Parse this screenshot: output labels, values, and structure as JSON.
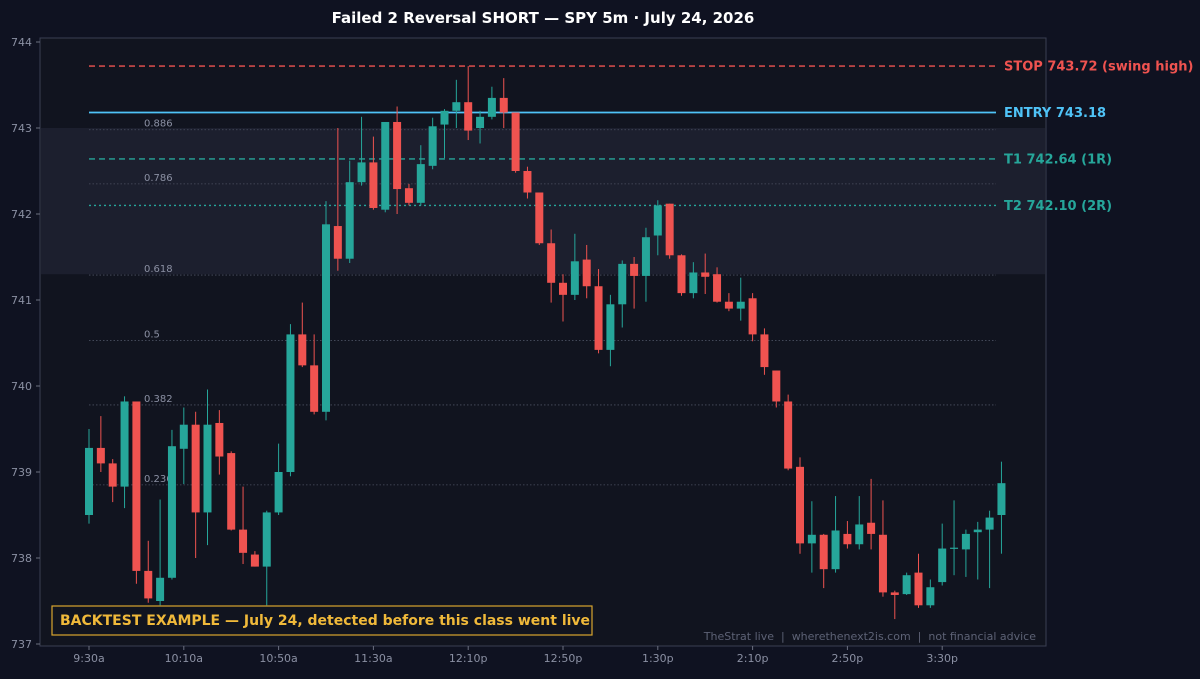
{
  "chart_data": {
    "type": "candlestick",
    "title": "Failed 2 Reversal SHORT — SPY 5m · July 24, 2026",
    "ylim": [
      737,
      744.1
    ],
    "y_ticks": [
      737,
      738,
      739,
      740,
      741,
      742,
      743,
      744
    ],
    "x_tick_labels": [
      {
        "index": 0,
        "label": "9:30a"
      },
      {
        "index": 8,
        "label": "10:10a"
      },
      {
        "index": 16,
        "label": "10:50a"
      },
      {
        "index": 24,
        "label": "11:30a"
      },
      {
        "index": 32,
        "label": "12:10p"
      },
      {
        "index": 40,
        "label": "12:50p"
      },
      {
        "index": 48,
        "label": "1:30p"
      },
      {
        "index": 56,
        "label": "2:10p"
      },
      {
        "index": 64,
        "label": "2:50p"
      },
      {
        "index": 72,
        "label": "3:30p"
      }
    ],
    "grid": false,
    "candles": [
      {
        "o": 738.5,
        "h": 739.5,
        "l": 738.4,
        "c": 739.28
      },
      {
        "o": 739.28,
        "h": 739.65,
        "l": 739.0,
        "c": 739.1
      },
      {
        "o": 739.1,
        "h": 739.15,
        "l": 738.65,
        "c": 738.83
      },
      {
        "o": 738.83,
        "h": 739.88,
        "l": 738.58,
        "c": 739.82
      },
      {
        "o": 739.82,
        "h": 739.82,
        "l": 737.7,
        "c": 737.85
      },
      {
        "o": 737.85,
        "h": 738.2,
        "l": 737.48,
        "c": 737.53
      },
      {
        "o": 737.5,
        "h": 738.68,
        "l": 737.45,
        "c": 737.77
      },
      {
        "o": 737.77,
        "h": 739.49,
        "l": 737.75,
        "c": 739.3
      },
      {
        "o": 739.27,
        "h": 739.75,
        "l": 738.86,
        "c": 739.55
      },
      {
        "o": 739.55,
        "h": 739.7,
        "l": 738.0,
        "c": 738.53
      },
      {
        "o": 738.53,
        "h": 739.96,
        "l": 738.15,
        "c": 739.55
      },
      {
        "o": 739.57,
        "h": 739.72,
        "l": 738.97,
        "c": 739.18
      },
      {
        "o": 739.22,
        "h": 739.24,
        "l": 738.32,
        "c": 738.33
      },
      {
        "o": 738.33,
        "h": 738.83,
        "l": 737.93,
        "c": 738.06
      },
      {
        "o": 738.04,
        "h": 738.08,
        "l": 737.9,
        "c": 737.9
      },
      {
        "o": 737.9,
        "h": 738.55,
        "l": 737.45,
        "c": 738.53
      },
      {
        "o": 738.53,
        "h": 739.33,
        "l": 738.5,
        "c": 739.0
      },
      {
        "o": 739.0,
        "h": 740.72,
        "l": 738.95,
        "c": 740.6
      },
      {
        "o": 740.6,
        "h": 740.97,
        "l": 740.22,
        "c": 740.24
      },
      {
        "o": 740.24,
        "h": 740.6,
        "l": 739.67,
        "c": 739.7
      },
      {
        "o": 739.7,
        "h": 742.15,
        "l": 739.6,
        "c": 741.88
      },
      {
        "o": 741.86,
        "h": 743.0,
        "l": 741.34,
        "c": 741.48
      },
      {
        "o": 741.48,
        "h": 742.62,
        "l": 741.43,
        "c": 742.37
      },
      {
        "o": 742.37,
        "h": 743.13,
        "l": 742.33,
        "c": 742.6
      },
      {
        "o": 742.6,
        "h": 742.9,
        "l": 742.05,
        "c": 742.07
      },
      {
        "o": 742.05,
        "h": 743.07,
        "l": 742.02,
        "c": 743.07
      },
      {
        "o": 743.07,
        "h": 743.25,
        "l": 742.0,
        "c": 742.29
      },
      {
        "o": 742.3,
        "h": 742.35,
        "l": 742.1,
        "c": 742.13
      },
      {
        "o": 742.13,
        "h": 742.8,
        "l": 742.1,
        "c": 742.58
      },
      {
        "o": 742.56,
        "h": 743.12,
        "l": 742.52,
        "c": 743.02
      },
      {
        "o": 743.04,
        "h": 743.22,
        "l": 742.65,
        "c": 743.2
      },
      {
        "o": 743.2,
        "h": 743.56,
        "l": 743.0,
        "c": 743.3
      },
      {
        "o": 743.3,
        "h": 743.72,
        "l": 742.86,
        "c": 742.97
      },
      {
        "o": 743.0,
        "h": 743.2,
        "l": 742.82,
        "c": 743.13
      },
      {
        "o": 743.13,
        "h": 743.48,
        "l": 743.1,
        "c": 743.35
      },
      {
        "o": 743.35,
        "h": 743.58,
        "l": 743.0,
        "c": 743.18
      },
      {
        "o": 743.18,
        "h": 743.18,
        "l": 742.48,
        "c": 742.5
      },
      {
        "o": 742.5,
        "h": 742.55,
        "l": 742.18,
        "c": 742.25
      },
      {
        "o": 742.25,
        "h": 742.25,
        "l": 741.64,
        "c": 741.66
      },
      {
        "o": 741.66,
        "h": 741.82,
        "l": 740.97,
        "c": 741.2
      },
      {
        "o": 741.2,
        "h": 741.3,
        "l": 740.75,
        "c": 741.06
      },
      {
        "o": 741.06,
        "h": 741.77,
        "l": 741.0,
        "c": 741.45
      },
      {
        "o": 741.47,
        "h": 741.64,
        "l": 741.02,
        "c": 741.16
      },
      {
        "o": 741.16,
        "h": 741.36,
        "l": 740.38,
        "c": 740.42
      },
      {
        "o": 740.42,
        "h": 741.06,
        "l": 740.23,
        "c": 740.95
      },
      {
        "o": 740.95,
        "h": 741.46,
        "l": 740.68,
        "c": 741.42
      },
      {
        "o": 741.42,
        "h": 741.5,
        "l": 740.9,
        "c": 741.28
      },
      {
        "o": 741.28,
        "h": 741.84,
        "l": 740.98,
        "c": 741.73
      },
      {
        "o": 741.75,
        "h": 742.16,
        "l": 741.52,
        "c": 742.1
      },
      {
        "o": 742.12,
        "h": 742.12,
        "l": 741.48,
        "c": 741.52
      },
      {
        "o": 741.52,
        "h": 741.53,
        "l": 741.05,
        "c": 741.08
      },
      {
        "o": 741.08,
        "h": 741.44,
        "l": 741.02,
        "c": 741.32
      },
      {
        "o": 741.32,
        "h": 741.54,
        "l": 741.07,
        "c": 741.27
      },
      {
        "o": 741.3,
        "h": 741.38,
        "l": 740.97,
        "c": 740.98
      },
      {
        "o": 740.98,
        "h": 741.08,
        "l": 740.87,
        "c": 740.9
      },
      {
        "o": 740.9,
        "h": 741.26,
        "l": 740.76,
        "c": 740.98
      },
      {
        "o": 741.02,
        "h": 741.08,
        "l": 740.52,
        "c": 740.6
      },
      {
        "o": 740.6,
        "h": 740.67,
        "l": 740.13,
        "c": 740.22
      },
      {
        "o": 740.18,
        "h": 740.18,
        "l": 739.75,
        "c": 739.82
      },
      {
        "o": 739.82,
        "h": 739.9,
        "l": 739.02,
        "c": 739.04
      },
      {
        "o": 739.06,
        "h": 739.17,
        "l": 738.05,
        "c": 738.17
      },
      {
        "o": 738.17,
        "h": 738.66,
        "l": 737.83,
        "c": 738.27
      },
      {
        "o": 738.27,
        "h": 738.28,
        "l": 737.65,
        "c": 737.87
      },
      {
        "o": 737.87,
        "h": 738.72,
        "l": 737.83,
        "c": 738.32
      },
      {
        "o": 738.28,
        "h": 738.43,
        "l": 738.11,
        "c": 738.16
      },
      {
        "o": 738.16,
        "h": 738.72,
        "l": 738.1,
        "c": 738.39
      },
      {
        "o": 738.41,
        "h": 738.92,
        "l": 738.1,
        "c": 738.28
      },
      {
        "o": 738.27,
        "h": 738.67,
        "l": 737.55,
        "c": 737.6
      },
      {
        "o": 737.6,
        "h": 737.62,
        "l": 737.29,
        "c": 737.57
      },
      {
        "o": 737.58,
        "h": 737.83,
        "l": 737.57,
        "c": 737.8
      },
      {
        "o": 737.83,
        "h": 738.05,
        "l": 737.42,
        "c": 737.45
      },
      {
        "o": 737.45,
        "h": 737.75,
        "l": 737.42,
        "c": 737.66
      },
      {
        "o": 737.72,
        "h": 738.4,
        "l": 737.68,
        "c": 738.11
      },
      {
        "o": 738.11,
        "h": 738.67,
        "l": 737.8,
        "c": 738.12
      },
      {
        "o": 738.1,
        "h": 738.33,
        "l": 737.78,
        "c": 738.28
      },
      {
        "o": 738.3,
        "h": 738.42,
        "l": 737.75,
        "c": 738.33
      },
      {
        "o": 738.33,
        "h": 738.55,
        "l": 737.65,
        "c": 738.47
      },
      {
        "o": 738.5,
        "h": 739.12,
        "l": 738.05,
        "c": 738.87
      }
    ],
    "fib_levels": [
      {
        "label": "0.886",
        "value": 742.98
      },
      {
        "label": "0.786",
        "value": 742.35
      },
      {
        "label": "0.618",
        "value": 741.29
      },
      {
        "label": "0.5",
        "value": 740.53
      },
      {
        "label": "0.382",
        "value": 739.78
      },
      {
        "label": "0.236",
        "value": 738.85
      }
    ],
    "zone": {
      "from": 741.3,
      "to": 743.0
    },
    "levels": [
      {
        "name": "stop",
        "label": "STOP 743.72 (swing high)",
        "value": 743.72,
        "color": "#ef5350",
        "style": "dashed"
      },
      {
        "name": "entry",
        "label": "ENTRY 743.18",
        "value": 743.18,
        "color": "#4fc3f7",
        "style": "solid"
      },
      {
        "name": "t1",
        "label": "T1 742.64 (1R)",
        "value": 742.64,
        "color": "#26a69a",
        "style": "dashed"
      },
      {
        "name": "t2",
        "label": "T2 742.10 (2R)",
        "value": 742.1,
        "color": "#26a69a",
        "style": "dotted"
      }
    ],
    "colors": {
      "background": "#0f1221",
      "plot_background": "#11141f",
      "up": "#26a69a",
      "down": "#ef5350",
      "axis": "#3a3f52",
      "fib_line": "#4a4f60",
      "zone": "#1c1f2e"
    },
    "banner": "BACKTEST EXAMPLE — July 24, detected before this class went live",
    "footer": "TheStrat live  |  wherethenext2is.com  |  not financial advice"
  }
}
